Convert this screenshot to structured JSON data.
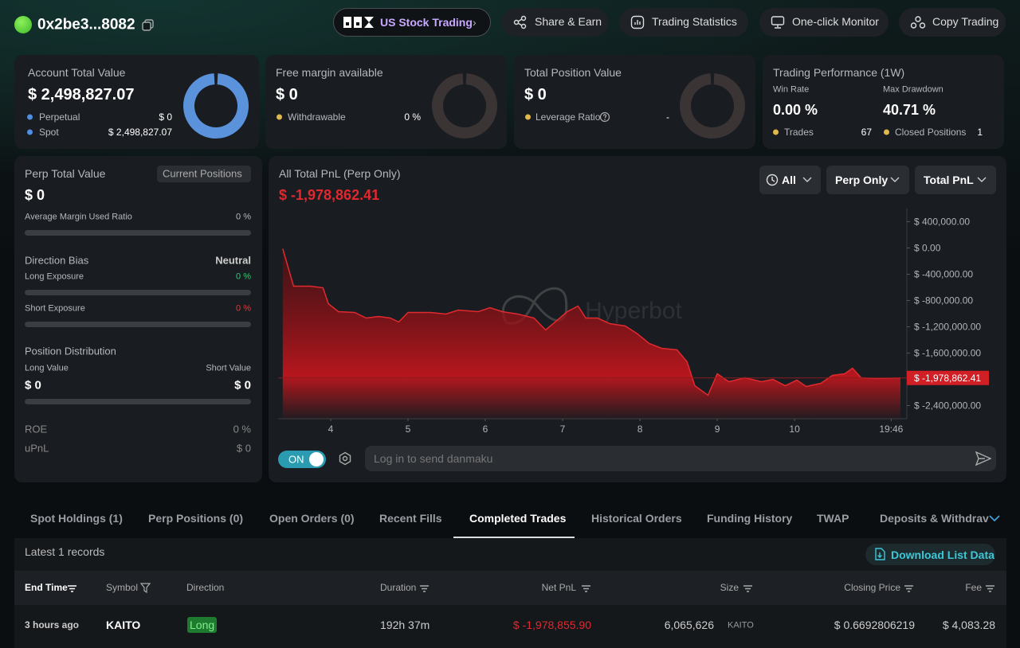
{
  "header": {
    "address": "0x2be3...8082",
    "nav": [
      "US Stock Trading",
      "Share & Earn",
      "Trading Statistics",
      "One-click Monitor",
      "Copy Trading"
    ]
  },
  "cards": {
    "account": {
      "title": "Account Total Value",
      "value": "$ 2,498,827.07",
      "rows": [
        {
          "label": "Perpetual",
          "value": "$ 0"
        },
        {
          "label": "Spot",
          "value": "$ 2,498,827.07"
        }
      ]
    },
    "margin": {
      "title": "Free margin available",
      "value": "$ 0",
      "label": "Withdrawable",
      "pct": "0 %"
    },
    "position": {
      "title": "Total Position Value",
      "value": "$ 0",
      "label": "Leverage Ratio",
      "ratio": "-"
    },
    "performance": {
      "title": "Trading Performance (1W)",
      "win_rate_label": "Win Rate",
      "win_rate": "0.00 %",
      "drawdown_label": "Max Drawdown",
      "drawdown": "40.71 %",
      "trades_label": "Trades",
      "trades": "67",
      "closed_label": "Closed Positions",
      "closed": "1"
    }
  },
  "perp": {
    "title": "Perp Total Value",
    "button": "Current Positions",
    "value": "$ 0",
    "margin_label": "Average Margin Used Ratio",
    "margin_value": "0 %",
    "bias_label": "Direction Bias",
    "bias_value": "Neutral",
    "long_label": "Long Exposure",
    "long_value": "0 %",
    "short_label": "Short Exposure",
    "short_value": "0 %",
    "dist_label": "Position Distribution",
    "long_value_label": "Long Value",
    "short_value_label": "Short Value",
    "long_amount": "$ 0",
    "short_amount": "$ 0",
    "roe_label": "ROE",
    "roe": "0 %",
    "upnl_label": "uPnL",
    "upnl": "$ 0"
  },
  "chart_data": {
    "type": "area",
    "title": "All Total PnL (Perp Only)",
    "subtitle": "$ -1,978,862.41",
    "watermark": "Hyperbot",
    "color": "#e02a2f",
    "x": [
      3.38,
      3.52,
      3.74,
      3.9,
      3.97,
      4.1,
      4.31,
      4.46,
      4.62,
      4.77,
      4.88,
      5.0,
      5.29,
      5.49,
      5.65,
      5.91,
      6.06,
      6.22,
      6.42,
      6.63,
      6.78,
      6.94,
      7.06,
      7.2,
      7.3,
      7.45,
      7.61,
      7.81,
      7.97,
      8.12,
      8.28,
      8.48,
      8.61,
      8.71,
      8.88,
      9.0,
      9.15,
      9.36,
      9.57,
      9.72,
      9.88,
      10.03,
      10.15,
      10.34,
      10.49,
      10.65,
      10.75,
      10.86,
      11.06,
      11.37
    ],
    "values": [
      -12000,
      -582000,
      -582000,
      -606000,
      -848000,
      -970000,
      -982000,
      -1067000,
      -1042000,
      -1067000,
      -1127000,
      -982000,
      -982000,
      -1006000,
      -945000,
      -970000,
      -909000,
      -970000,
      -1006000,
      -1067000,
      -1248000,
      -1091000,
      -970000,
      -885000,
      -1067000,
      -1067000,
      -1152000,
      -1188000,
      -1309000,
      -1455000,
      -1527000,
      -1552000,
      -1733000,
      -2097000,
      -2242000,
      -1915000,
      -2036000,
      -1976000,
      -2036000,
      -2000000,
      -2097000,
      -2012000,
      -2109000,
      -2061000,
      -1939000,
      -1915000,
      -1830000,
      -1976000,
      -1988000,
      -1978862.41
    ],
    "xlim": [
      3.32,
      11.37
    ],
    "xticks": [
      4,
      5,
      6,
      7,
      8,
      9,
      10,
      {
        "value": 11.25,
        "label": "19:46"
      }
    ],
    "ylim": [
      -2600000,
      600000
    ],
    "yticks": [
      {
        "value": 400000,
        "label": "$ 400,000.00"
      },
      {
        "value": 0,
        "label": "$ 0.00"
      },
      {
        "value": -400000,
        "label": "$ -400,000.00"
      },
      {
        "value": -800000,
        "label": "$ -800,000.00"
      },
      {
        "value": -1200000,
        "label": "$ -1,200,000.00"
      },
      {
        "value": -1600000,
        "label": "$ -1,600,000.00"
      },
      {
        "value": -2400000,
        "label": "$ -2,400,000.00"
      }
    ],
    "last_label": {
      "value": -1978862.41,
      "label": "$ -1,978,862.41"
    }
  },
  "chart_controls": {
    "dropdowns": [
      "All",
      "Perp Only",
      "Total PnL"
    ],
    "toggle": "ON",
    "danmaku_placeholder": "Log in to send danmaku"
  },
  "table": {
    "tabs": [
      "Spot Holdings (1)",
      "Perp Positions (0)",
      "Open Orders (0)",
      "Recent Fills",
      "Completed Trades",
      "Historical Orders",
      "Funding History",
      "TWAP",
      "Deposits & Withdrav"
    ],
    "records": "Latest 1 records",
    "download": "Download List Data",
    "columns": [
      "End Time",
      "Symbol",
      "Direction",
      "Duration",
      "Net PnL",
      "Size",
      "Closing Price",
      "Fee"
    ],
    "row": {
      "end_time": "3 hours ago",
      "symbol": "KAITO",
      "direction": "Long",
      "duration": "192h 37m",
      "net_pnl": "$ -1,978,855.90",
      "size": "6,065,626",
      "size_unit": "KAITO",
      "closing_price": "$ 0.6692806219",
      "fee": "$ 4,083.28"
    }
  }
}
